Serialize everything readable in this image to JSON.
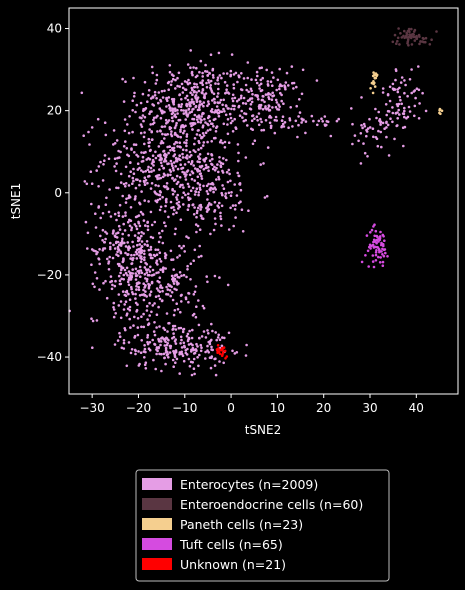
{
  "chart_data": {
    "type": "scatter",
    "title": "",
    "xlabel": "tSNE2",
    "ylabel": "tSNE1",
    "xlim": [
      -35,
      49
    ],
    "ylim": [
      -49,
      45
    ],
    "xticks": [
      -30,
      -20,
      -10,
      0,
      10,
      20,
      30,
      40
    ],
    "yticks": [
      -40,
      -20,
      0,
      20,
      40
    ],
    "grid": false,
    "legend_position": "below",
    "background": "#000000",
    "series": [
      {
        "name": "Enterocytes (n=2009)",
        "color": "#e59de5",
        "count": 2009,
        "clusters": [
          {
            "cx": -8,
            "cy": 22,
            "sx": 6,
            "sy": 5,
            "n": 400
          },
          {
            "cx": 8,
            "cy": 22,
            "sx": 3.5,
            "sy": 4,
            "n": 160
          },
          {
            "cx": -14,
            "cy": 8,
            "sx": 7,
            "sy": 6,
            "n": 380
          },
          {
            "cx": -6,
            "cy": 0,
            "sx": 6,
            "sy": 5,
            "n": 180
          },
          {
            "cx": -22,
            "cy": -14,
            "sx": 4,
            "sy": 7,
            "n": 300
          },
          {
            "cx": -15,
            "cy": -22,
            "sx": 5,
            "sy": 5,
            "n": 200
          },
          {
            "cx": -12,
            "cy": -37,
            "sx": 6,
            "sy": 3,
            "n": 240
          },
          {
            "cx": 17,
            "cy": 17,
            "sx": 3.5,
            "sy": 1.2,
            "n": 30
          },
          {
            "cx": 31,
            "cy": 15,
            "sx": 2.5,
            "sy": 3,
            "n": 50
          },
          {
            "cx": 37,
            "cy": 23,
            "sx": 2.2,
            "sy": 4,
            "n": 69
          }
        ]
      },
      {
        "name": "Enteroendocrine cells (n=60)",
        "color": "#5a3642",
        "count": 60,
        "clusters": [
          {
            "cx": 39,
            "cy": 38,
            "sx": 2.2,
            "sy": 1.1,
            "n": 60
          }
        ]
      },
      {
        "name": "Paneth cells (n=23)",
        "color": "#f5cf8f",
        "count": 23,
        "clusters": [
          {
            "cx": 31,
            "cy": 27.5,
            "sx": 0.5,
            "sy": 1.2,
            "n": 17
          },
          {
            "cx": 45,
            "cy": 19.5,
            "sx": 0.2,
            "sy": 0.8,
            "n": 6
          }
        ]
      },
      {
        "name": "Tuft cells (n=65)",
        "color": "#d54be0",
        "count": 65,
        "clusters": [
          {
            "cx": 31.5,
            "cy": -13,
            "sx": 1.2,
            "sy": 2.2,
            "n": 65
          }
        ]
      },
      {
        "name": "Unknown (n=21)",
        "color": "#ff0000",
        "count": 21,
        "clusters": [
          {
            "cx": -2,
            "cy": -38.5,
            "sx": 0.7,
            "sy": 0.7,
            "n": 21
          }
        ]
      }
    ]
  }
}
